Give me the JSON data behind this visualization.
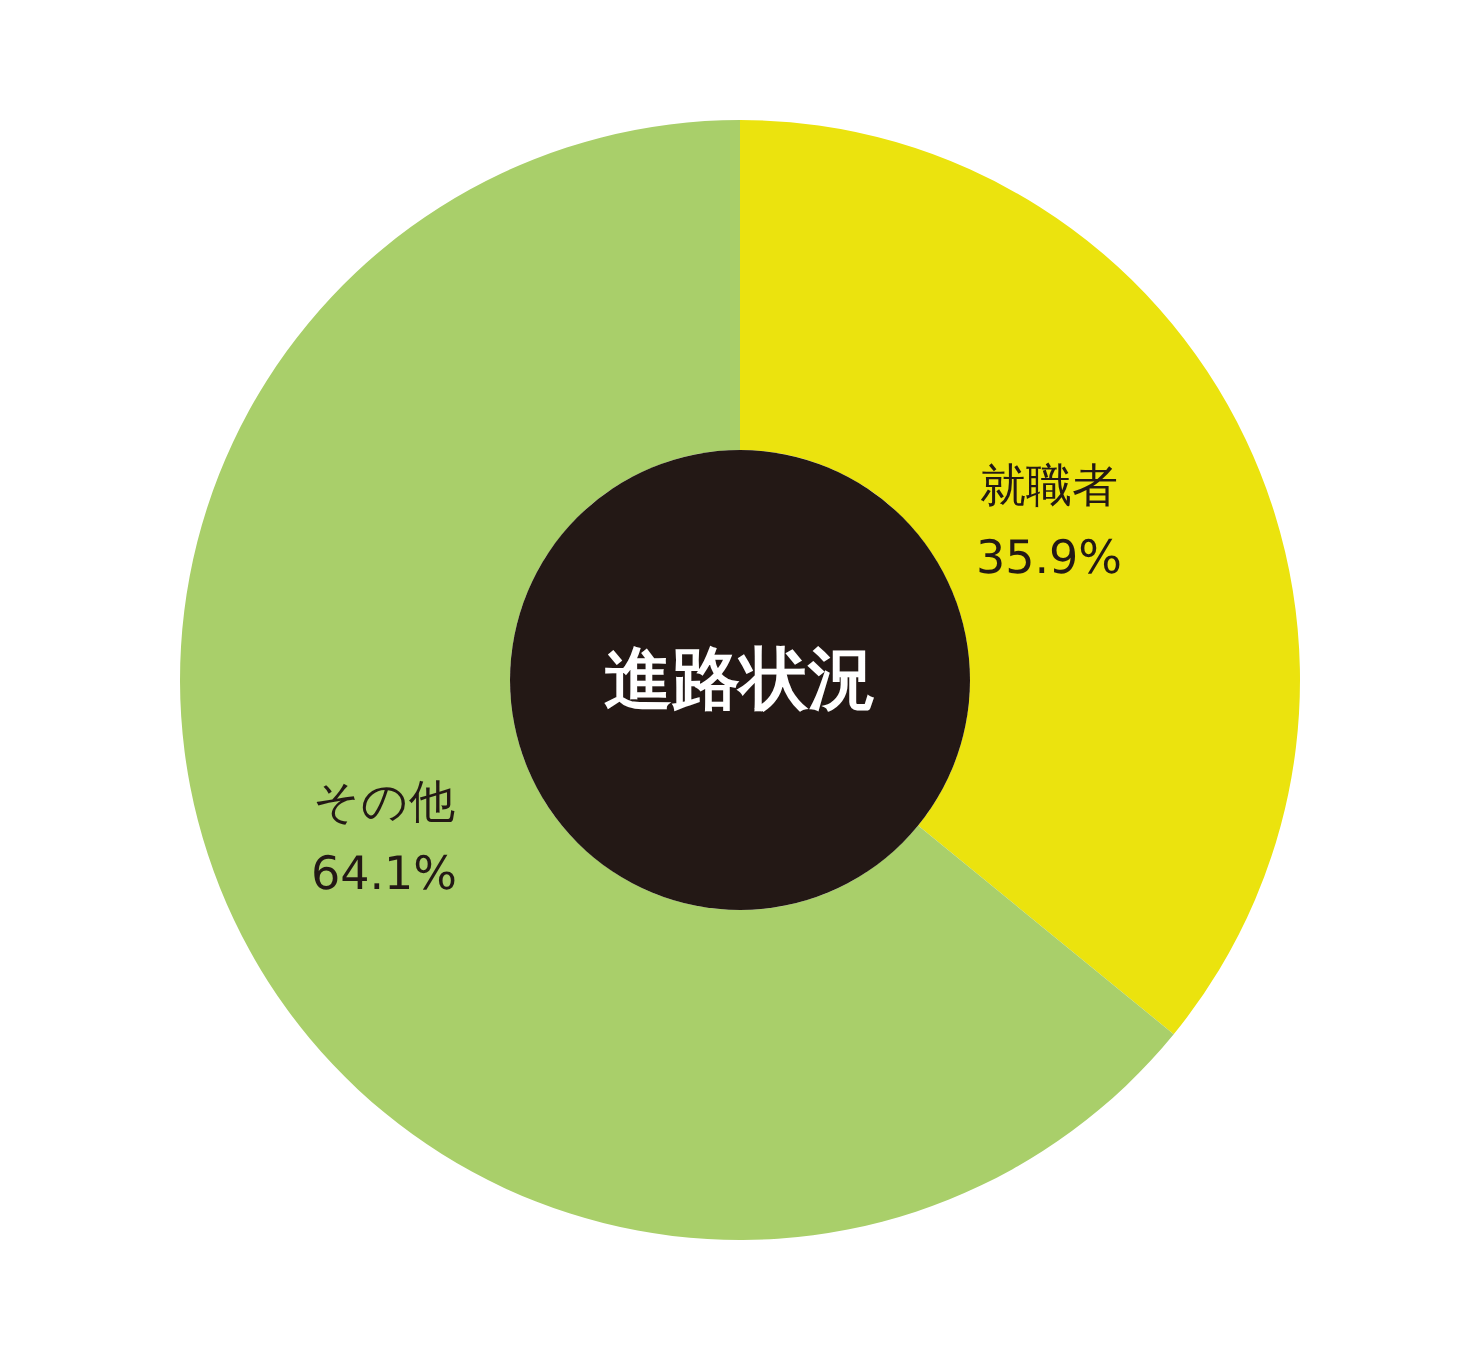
{
  "chart_data": {
    "type": "donut",
    "title": "進路状況",
    "categories": [
      "就職者",
      "その他"
    ],
    "values": [
      35.9,
      64.1
    ],
    "colors": [
      "#ebe30e",
      "#a9cf6a"
    ],
    "value_labels": [
      "35.9%",
      "64.1%"
    ]
  }
}
